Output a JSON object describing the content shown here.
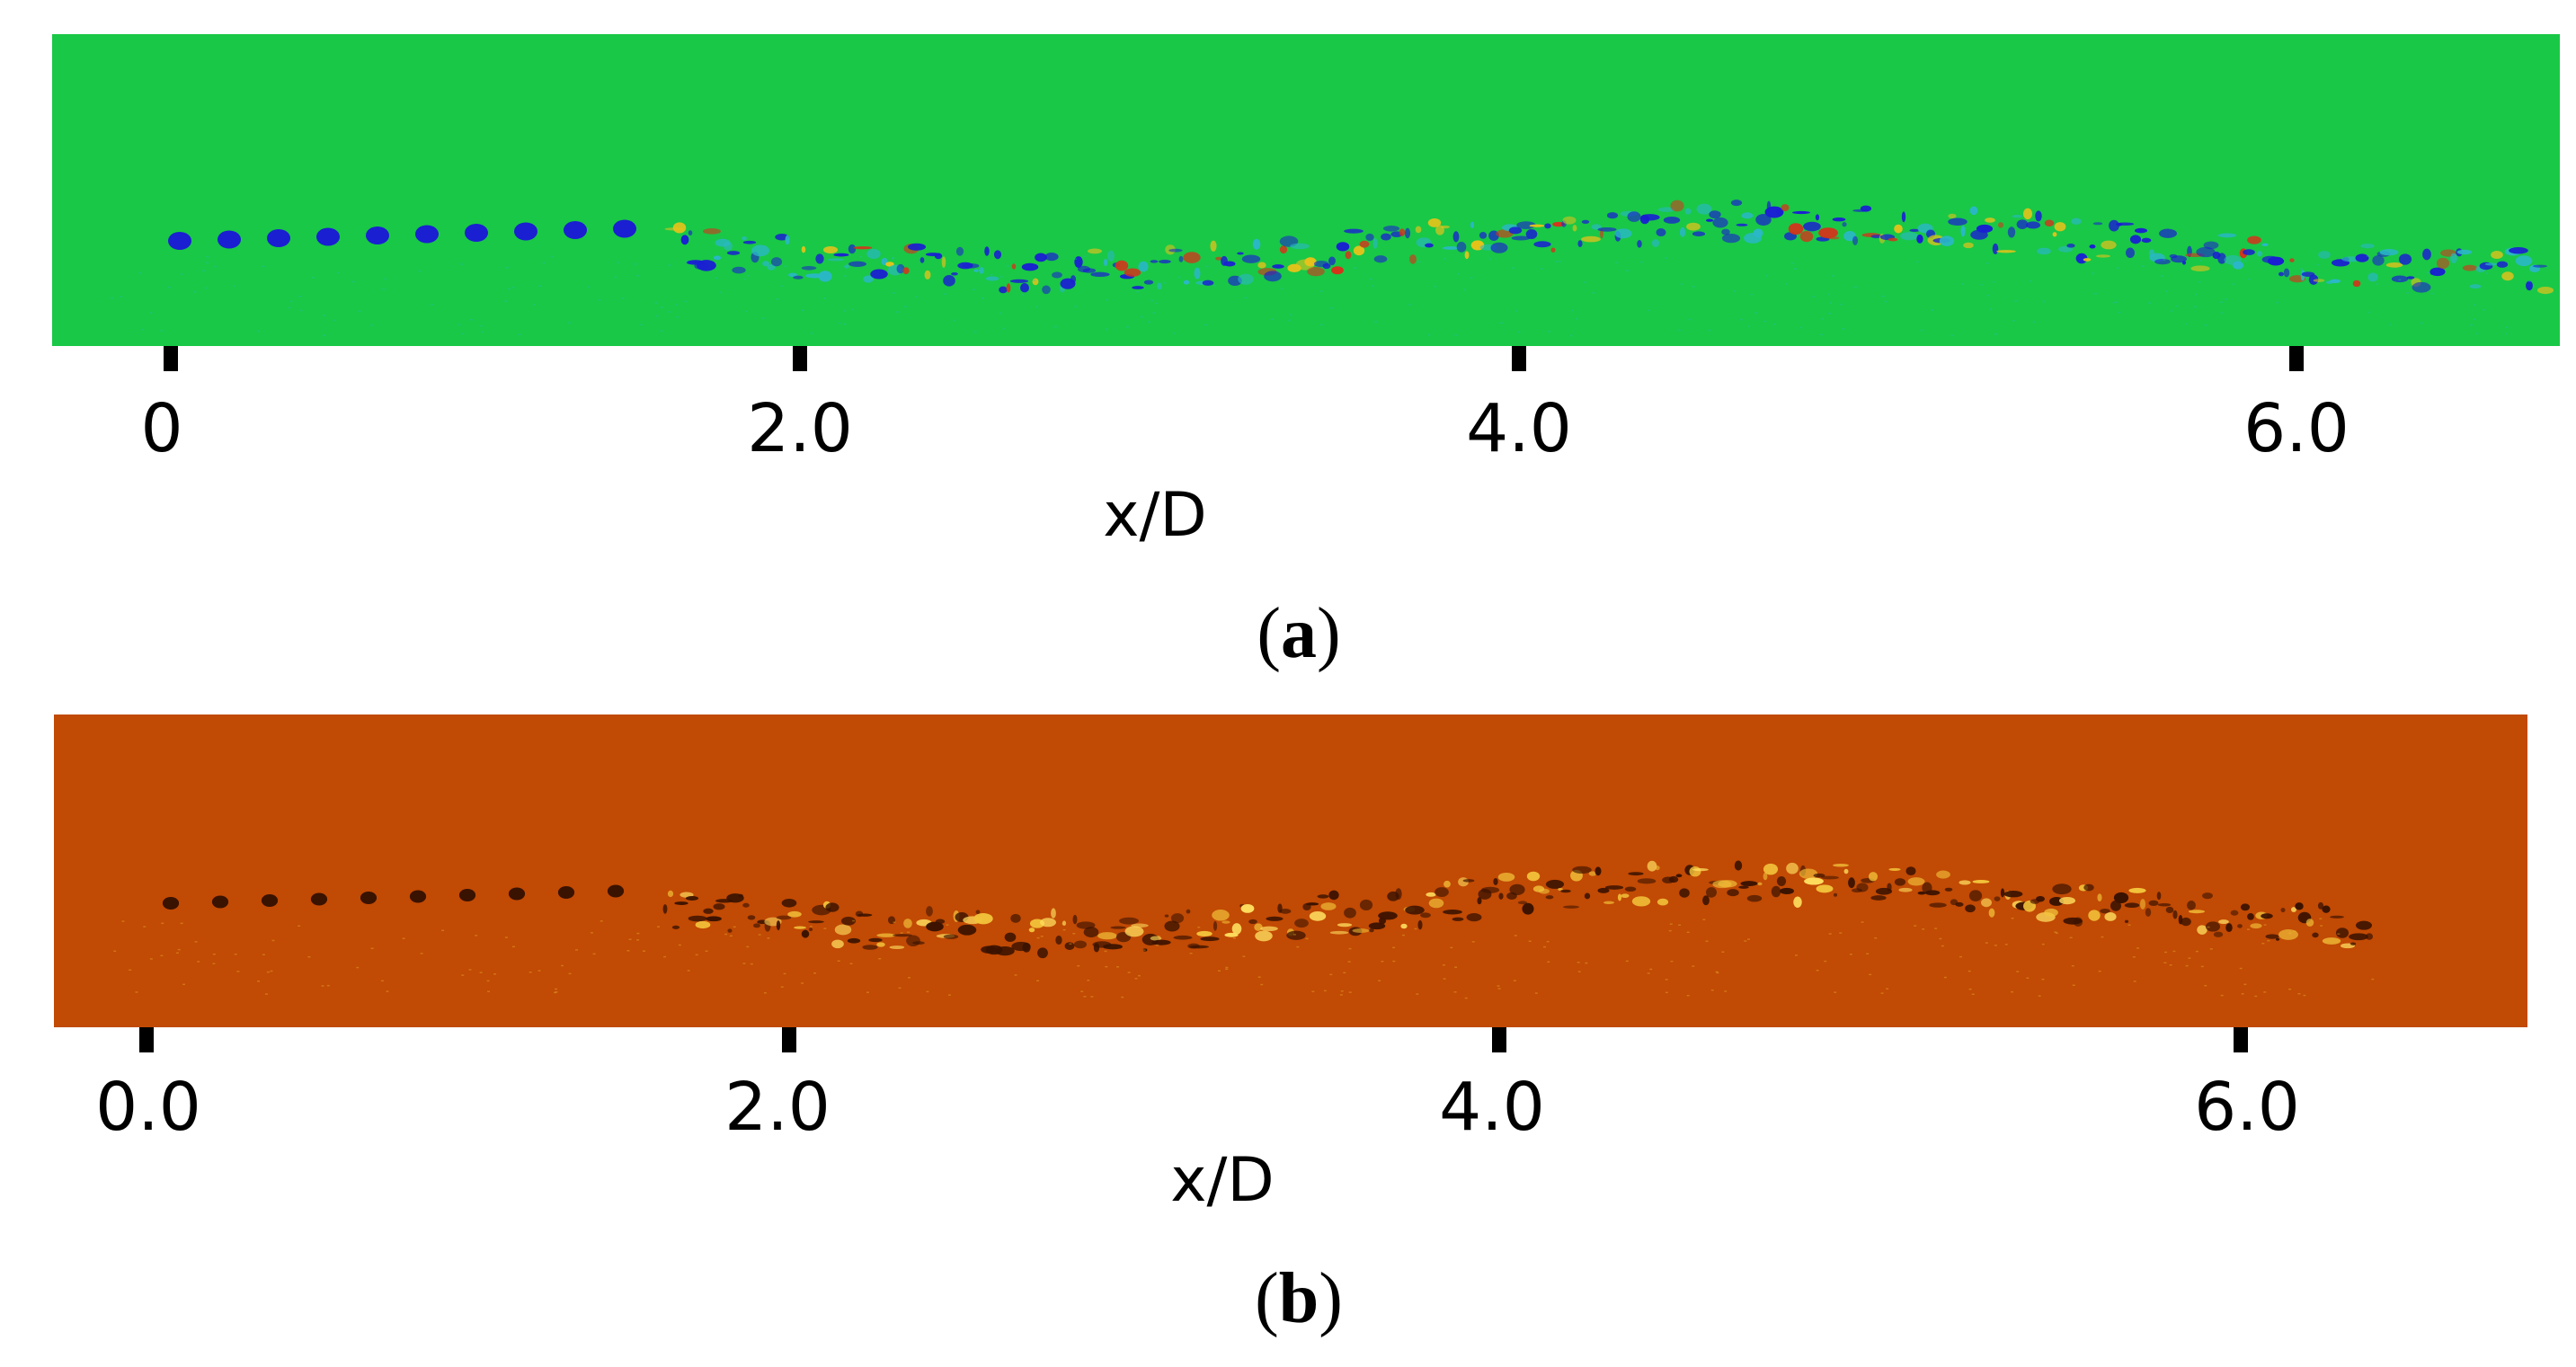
{
  "panels": [
    {
      "id": "a",
      "label_open": "(",
      "label_letter": "a",
      "label_close": ")",
      "axis_title": "x/D",
      "ticks": [
        "0",
        "2.0",
        "4.0",
        "6.0"
      ],
      "colors": {
        "background": "#19c846",
        "structure": "#1a1fd2",
        "warm": "#e8c21a",
        "hot": "#d7321a",
        "cool": "#2ab7c8"
      }
    },
    {
      "id": "b",
      "label_open": "(",
      "label_letter": "b",
      "label_close": ")",
      "axis_title": "x/D",
      "ticks": [
        "0.0",
        "2.0",
        "4.0",
        "6.0"
      ],
      "colors": {
        "background": "#c14a04",
        "structure": "#3a1200",
        "warm": "#f2c23a",
        "hot": "#ffe060"
      }
    }
  ]
}
